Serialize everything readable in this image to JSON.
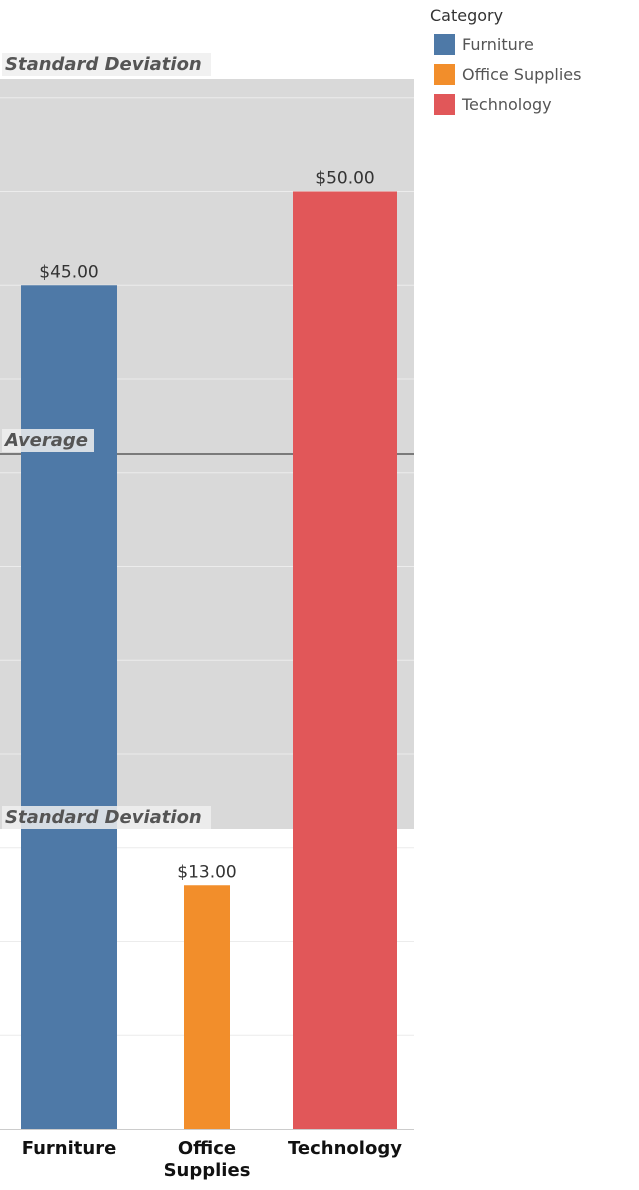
{
  "chart_data": {
    "type": "bar",
    "categories": [
      "Furniture",
      "Office Supplies",
      "Technology"
    ],
    "values": [
      45,
      13,
      50
    ],
    "value_labels": [
      "$45.00",
      "$13.00",
      "$50.00"
    ],
    "colors": [
      "#4e79a7",
      "#f28e2b",
      "#e15759"
    ],
    "ylim": [
      0,
      56
    ],
    "grid": true,
    "reference_lines": {
      "average": {
        "label": "Average",
        "value": 36
      },
      "std_band": {
        "label_top": "Standard Deviation",
        "label_bottom": "Standard Deviation",
        "lower": 16,
        "upper": 56
      }
    },
    "legend": {
      "title": "Category",
      "placement": "top-right",
      "items": [
        "Furniture",
        "Office Supplies",
        "Technology"
      ]
    }
  }
}
